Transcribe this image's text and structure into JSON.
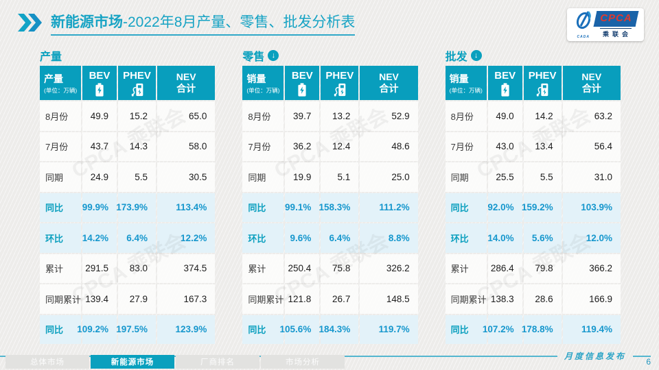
{
  "header": {
    "title_main": "新能源市场",
    "title_rest": "-2022年8月产量、零售、批发分析表"
  },
  "logo": {
    "acronym": "CPCA",
    "chinese": "乘联会",
    "sub": "CADA"
  },
  "watermark": "CPCA 乘联会",
  "icons": {
    "double_chevron": "double-chevron-icon",
    "bev": "battery-icon",
    "phev": "charger-icon",
    "down_arrow": "↓"
  },
  "tables": [
    {
      "section": "产量",
      "arrow": false,
      "corner_label": "产量",
      "corner_unit": "(单位：万辆)",
      "columns": {
        "bev": "BEV",
        "phev": "PHEV",
        "nev_line1": "NEV",
        "nev_line2": "合计"
      },
      "rows": [
        {
          "label": "8月份",
          "kind": "value",
          "values": [
            "49.9",
            "15.2",
            "65.0"
          ]
        },
        {
          "label": "7月份",
          "kind": "value",
          "values": [
            "43.7",
            "14.3",
            "58.0"
          ]
        },
        {
          "label": "同期",
          "kind": "value",
          "values": [
            "24.9",
            "5.5",
            "30.5"
          ]
        },
        {
          "label": "同比",
          "kind": "percent",
          "values": [
            "99.9%",
            "173.9%",
            "113.4%"
          ]
        },
        {
          "label": "环比",
          "kind": "percent",
          "values": [
            "14.2%",
            "6.4%",
            "12.2%"
          ]
        },
        {
          "label": "累计",
          "kind": "value",
          "values": [
            "291.5",
            "83.0",
            "374.5"
          ]
        },
        {
          "label": "同期累计",
          "kind": "value",
          "values": [
            "139.4",
            "27.9",
            "167.3"
          ]
        },
        {
          "label": "同比",
          "kind": "percent",
          "values": [
            "109.2%",
            "197.5%",
            "123.9%"
          ]
        }
      ]
    },
    {
      "section": "零售",
      "arrow": true,
      "corner_label": "销量",
      "corner_unit": "(单位：万辆)",
      "columns": {
        "bev": "BEV",
        "phev": "PHEV",
        "nev_line1": "NEV",
        "nev_line2": "合计"
      },
      "rows": [
        {
          "label": "8月份",
          "kind": "value",
          "values": [
            "39.7",
            "13.2",
            "52.9"
          ]
        },
        {
          "label": "7月份",
          "kind": "value",
          "values": [
            "36.2",
            "12.4",
            "48.6"
          ]
        },
        {
          "label": "同期",
          "kind": "value",
          "values": [
            "19.9",
            "5.1",
            "25.0"
          ]
        },
        {
          "label": "同比",
          "kind": "percent",
          "values": [
            "99.1%",
            "158.3%",
            "111.2%"
          ]
        },
        {
          "label": "环比",
          "kind": "percent",
          "values": [
            "9.6%",
            "6.4%",
            "8.8%"
          ]
        },
        {
          "label": "累计",
          "kind": "value",
          "values": [
            "250.4",
            "75.8",
            "326.2"
          ]
        },
        {
          "label": "同期累计",
          "kind": "value",
          "values": [
            "121.8",
            "26.7",
            "148.5"
          ]
        },
        {
          "label": "同比",
          "kind": "percent",
          "values": [
            "105.6%",
            "184.3%",
            "119.7%"
          ]
        }
      ]
    },
    {
      "section": "批发",
      "arrow": true,
      "corner_label": "销量",
      "corner_unit": "(单位：万辆)",
      "columns": {
        "bev": "BEV",
        "phev": "PHEV",
        "nev_line1": "NEV",
        "nev_line2": "合计"
      },
      "rows": [
        {
          "label": "8月份",
          "kind": "value",
          "values": [
            "49.0",
            "14.2",
            "63.2"
          ]
        },
        {
          "label": "7月份",
          "kind": "value",
          "values": [
            "43.0",
            "13.4",
            "56.4"
          ]
        },
        {
          "label": "同期",
          "kind": "value",
          "values": [
            "25.5",
            "5.5",
            "31.0"
          ]
        },
        {
          "label": "同比",
          "kind": "percent",
          "values": [
            "92.0%",
            "159.2%",
            "103.9%"
          ]
        },
        {
          "label": "环比",
          "kind": "percent",
          "values": [
            "14.0%",
            "5.6%",
            "12.0%"
          ]
        },
        {
          "label": "累计",
          "kind": "value",
          "values": [
            "286.4",
            "79.8",
            "366.2"
          ]
        },
        {
          "label": "同期累计",
          "kind": "value",
          "values": [
            "138.3",
            "28.6",
            "166.9"
          ]
        },
        {
          "label": "同比",
          "kind": "percent",
          "values": [
            "107.2%",
            "178.8%",
            "119.4%"
          ]
        }
      ]
    }
  ],
  "footer": {
    "tabs": [
      {
        "label": "总体市场",
        "active": false
      },
      {
        "label": "新能源市场",
        "active": true
      },
      {
        "label": "厂商排名",
        "active": false
      },
      {
        "label": "市场分析",
        "active": false
      }
    ],
    "publication": "月度信息发布",
    "page_number": "6"
  },
  "colors": {
    "accent_teal": "#089EBD",
    "title_teal": "#17A3C4",
    "percent_blue": "#1697CD",
    "percent_row_bg": "#E3F2F9",
    "logo_blue": "#1A63A8",
    "logo_red": "#E0392E"
  }
}
